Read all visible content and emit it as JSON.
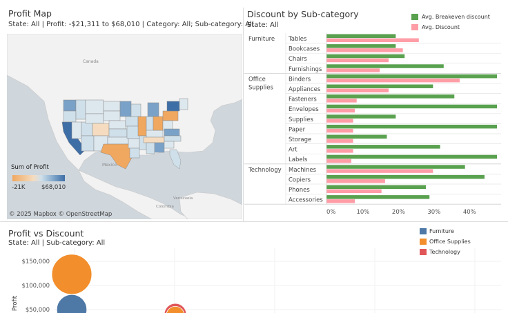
{
  "profit_map": {
    "title": "Profit Map",
    "subtitle": "State: All | Profit: -$21,311 to $68,010 | Category: All; Sub-category: All",
    "labels": {
      "canada": "Canada",
      "mexico": "Mexico",
      "venezuela": "Venezuela",
      "colombia": "Colombia"
    },
    "legend": {
      "title": "Sum of Profit",
      "min": "-21K",
      "max": "$68,010"
    },
    "attribution": "© 2025 Mapbox © OpenStreetMap"
  },
  "discount_chart": {
    "title": "Discount by Sub-category",
    "subtitle": "State:  All",
    "legend": {
      "breakeven": "Avg. Breakeven discount",
      "discount": "Avg. Discount"
    },
    "colors": {
      "breakeven": "#59a14f",
      "discount": "#ff9da7"
    }
  },
  "scatter_chart": {
    "title": "Profit vs Discount",
    "subtitle": "State: All | Sub-category: All",
    "legend": [
      {
        "label": "Furniture",
        "color": "#4e79a7"
      },
      {
        "label": "Office Supplies",
        "color": "#f28e2b"
      },
      {
        "label": "Technology",
        "color": "#e15759"
      }
    ]
  },
  "chart_data": [
    {
      "type": "bar",
      "title": "Discount by Sub-category",
      "groups": [
        {
          "name": "Furniture",
          "categories": [
            "Tables",
            "Bookcases",
            "Chairs",
            "Furnishings"
          ]
        },
        {
          "name": "Office Supplies",
          "categories": [
            "Binders",
            "Appliances",
            "Fasteners",
            "Envelopes",
            "Supplies",
            "Paper",
            "Storage",
            "Art",
            "Labels"
          ]
        },
        {
          "name": "Technology",
          "categories": [
            "Machines",
            "Copiers",
            "Phones",
            "Accessories"
          ]
        }
      ],
      "series": [
        {
          "name": "Avg. Breakeven discount",
          "values": [
            19.5,
            19.5,
            22,
            33,
            48,
            30,
            36,
            48,
            19.5,
            48,
            17,
            32,
            48,
            39,
            44.5,
            28,
            29
          ]
        },
        {
          "name": "Avg. Discount",
          "values": [
            26,
            21.5,
            17.5,
            15,
            37.5,
            17.5,
            8.5,
            8,
            7.5,
            7.5,
            7.5,
            7.5,
            7,
            30,
            16.5,
            15.5,
            8
          ]
        }
      ],
      "xlim": [
        0,
        48
      ],
      "xticks": [
        "0%",
        "10%",
        "20%",
        "30%",
        "40%"
      ]
    },
    {
      "type": "scatter",
      "title": "Profit vs Discount",
      "ylabel": "Profit",
      "yticks": [
        "$150,000",
        "$100,000",
        "$50,000"
      ],
      "points": [
        {
          "category": "Office Supplies",
          "x": 0,
          "y": 123000,
          "size": 1
        },
        {
          "category": "Furniture",
          "x": 0,
          "y": 50000,
          "size": 0.75
        },
        {
          "category": "Technology",
          "x": 0.1,
          "y": 40000,
          "size": 0.55
        },
        {
          "category": "Office Supplies",
          "x": 0.1,
          "y": 38000,
          "size": 0.45
        }
      ]
    }
  ]
}
